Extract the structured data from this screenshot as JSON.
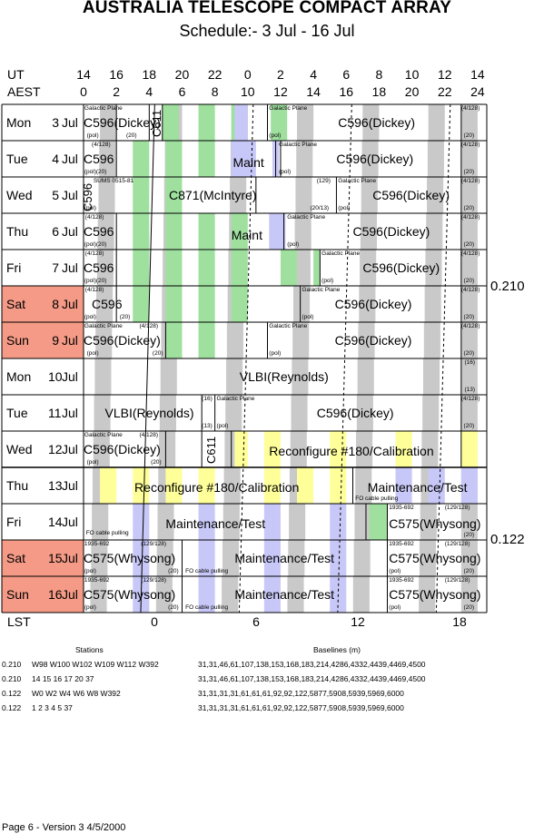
{
  "title": "AUSTRALIA TELESCOPE COMPACT ARRAY",
  "subtitle": "Schedule:- 3  Jul - 16 Jul",
  "axis": {
    "ut_label": "UT",
    "aest_label": "AEST",
    "lst_label": "LST",
    "ut_ticks": [
      "14",
      "16",
      "18",
      "20",
      "22",
      "0",
      "2",
      "4",
      "6",
      "8",
      "10",
      "12",
      "14"
    ],
    "aest_ticks": [
      "0",
      "2",
      "4",
      "6",
      "8",
      "10",
      "12",
      "14",
      "16",
      "18",
      "20",
      "22",
      "24"
    ],
    "lst_ticks": [
      "0",
      "6",
      "12",
      "18"
    ]
  },
  "days": [
    {
      "dow": "Mon",
      "num": "3",
      "mon": "Jul",
      "weekend": false
    },
    {
      "dow": "Tue",
      "num": "4",
      "mon": "Jul",
      "weekend": false
    },
    {
      "dow": "Wed",
      "num": "5",
      "mon": "Jul",
      "weekend": false
    },
    {
      "dow": "Thu",
      "num": "6",
      "mon": "Jul",
      "weekend": false
    },
    {
      "dow": "Fri",
      "num": "7",
      "mon": "Jul",
      "weekend": false
    },
    {
      "dow": "Sat",
      "num": "8",
      "mon": "Jul",
      "weekend": true
    },
    {
      "dow": "Sun",
      "num": "9",
      "mon": "Jul",
      "weekend": true
    },
    {
      "dow": "Mon",
      "num": "10",
      "mon": "Jul",
      "weekend": false
    },
    {
      "dow": "Tue",
      "num": "11",
      "mon": "Jul",
      "weekend": false
    },
    {
      "dow": "Wed",
      "num": "12",
      "mon": "Jul",
      "weekend": false
    },
    {
      "dow": "Thu",
      "num": "13",
      "mon": "Jul",
      "weekend": false
    },
    {
      "dow": "Fri",
      "num": "14",
      "mon": "Jul",
      "weekend": false
    },
    {
      "dow": "Sat",
      "num": "15",
      "mon": "Jul",
      "weekend": true
    },
    {
      "dow": "Sun",
      "num": "16",
      "mon": "Jul",
      "weekend": true
    }
  ],
  "config_labels": [
    "0.210",
    "0.122"
  ],
  "colors": {
    "weekend": "#f49a86",
    "green": "#9fe09f",
    "grey": "#c9c9c9",
    "blue": "#c8c8f8",
    "yellow": "#ffff9a"
  },
  "projects": {
    "c596_dickey": "C596(Dickey)",
    "c596": "C596",
    "c611": "C611",
    "maint": "Maint",
    "c871": "C871(McIntyre)",
    "vlbi": "VLBI(Reynolds)",
    "reconfig": "Reconfigure #180/Calibration",
    "maintest": "Maintenance/Test",
    "c575": "C575(Whysong)"
  },
  "notes": {
    "galactic_plane": "Galactic Plane",
    "pol": "(pol)",
    "n20": "(20)",
    "n4_128": "(4/128)",
    "pol20": "(pol)(20)",
    "n129": "(129)",
    "n20_13": "(20/13)",
    "sums": "SUMS 0515-81",
    "n16": "(16)",
    "n13": "(13)",
    "fo_cable": "FO cable pulling",
    "src1935": "1935-692",
    "n129_128": "(129/128)"
  },
  "legend": {
    "stations_head": "Stations",
    "baselines_head": "Baselines (m)",
    "rows": [
      {
        "cfg": "0.210",
        "stations": "W98 W100 W102 W109 W112 W392",
        "baselines": "31,31,46,61,107,138,153,168,183,214,4286,4332,4439,4469,4500"
      },
      {
        "cfg": "0.210",
        "stations": "14  15  16 17  20  37",
        "baselines": "31,31,46,61,107,138,153,168,183,214,4286,4332,4439,4469,4500"
      },
      {
        "cfg": "0.122",
        "stations": "W0  W2  W4  W6  W8  W392",
        "baselines": "31,31,31,31,61,61,61,92,92,122,5877,5908,5939,5969,6000"
      },
      {
        "cfg": "0.122",
        "stations": "1  2 3 4  5  37",
        "baselines": "31,31,31,31,61,61,61,92,92,122,5877,5908,5939,5969,6000"
      }
    ]
  },
  "footer": "Page 6 - Version 3  4/5/2000"
}
